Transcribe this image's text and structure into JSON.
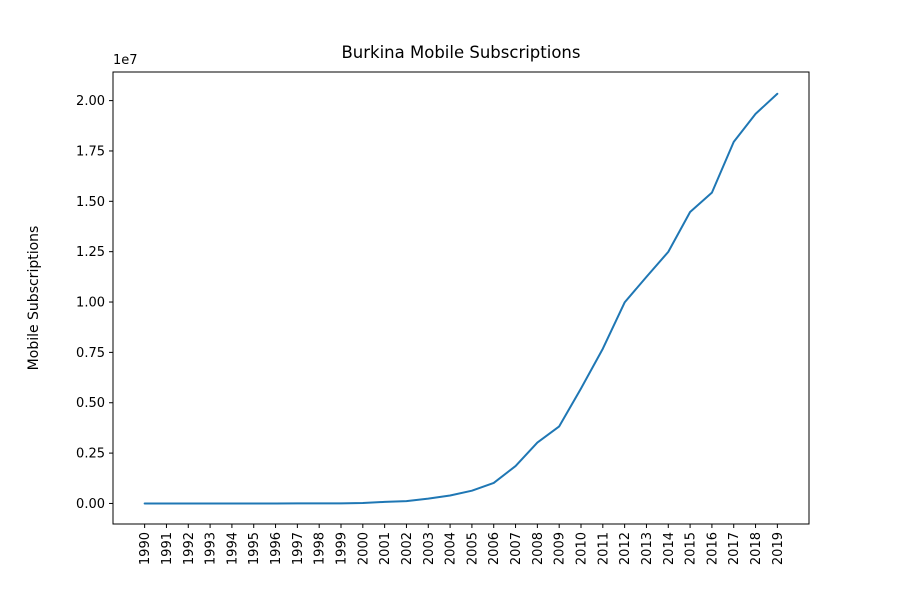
{
  "chart_data": {
    "type": "line",
    "title": "Burkina Mobile Subscriptions",
    "xlabel": "",
    "ylabel": "Mobile Subscriptions",
    "y_offset_label": "1e7",
    "ylim": [
      -1020000,
      21420000
    ],
    "x": [
      1990,
      1991,
      1992,
      1993,
      1994,
      1995,
      1996,
      1997,
      1998,
      1999,
      2000,
      2001,
      2002,
      2003,
      2004,
      2005,
      2006,
      2007,
      2008,
      2009,
      2010,
      2011,
      2012,
      2013,
      2014,
      2015,
      2016,
      2017,
      2018,
      2019
    ],
    "x_tick_labels": [
      "1990",
      "1991",
      "1992",
      "1993",
      "1994",
      "1995",
      "1996",
      "1997",
      "1998",
      "1999",
      "2000",
      "2001",
      "2002",
      "2003",
      "2004",
      "2005",
      "2006",
      "2007",
      "2008",
      "2009",
      "2010",
      "2011",
      "2012",
      "2013",
      "2014",
      "2015",
      "2016",
      "2017",
      "2018",
      "2019"
    ],
    "y_ticks": [
      0,
      2500000,
      5000000,
      7500000,
      10000000,
      12500000,
      15000000,
      17500000,
      20000000
    ],
    "y_tick_labels": [
      "0.00",
      "0.25",
      "0.50",
      "0.75",
      "1.00",
      "1.25",
      "1.50",
      "1.75",
      "2.00"
    ],
    "series": [
      {
        "color": "#1f77b4",
        "values": [
          0,
          0,
          0,
          0,
          0,
          0,
          0,
          1000,
          2000,
          5000,
          25000,
          76000,
          113000,
          238000,
          396000,
          634000,
          1017000,
          1858000,
          3024000,
          3824000,
          5708000,
          7682000,
          9981000,
          11250000,
          12490000,
          14470000,
          15430000,
          17950000,
          19340000,
          20340000
        ]
      }
    ],
    "grid": false,
    "legend": "none"
  }
}
